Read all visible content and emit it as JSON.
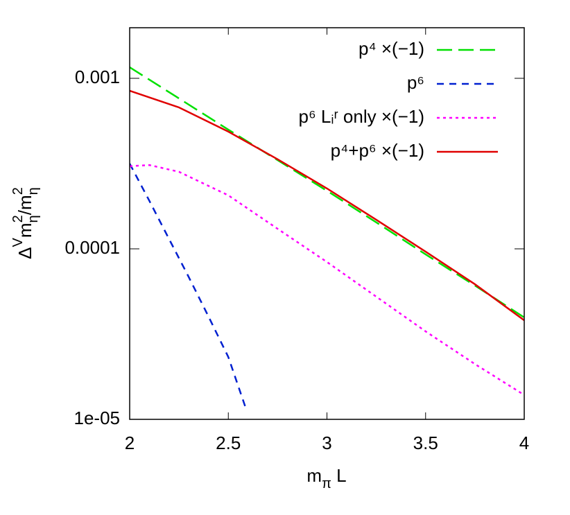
{
  "chart_data": {
    "type": "line",
    "xlabel": [
      {
        "text": "m"
      },
      {
        "text": "π",
        "shift": "sub"
      },
      {
        "text": " L"
      }
    ],
    "ylabel": [
      {
        "text": "Δ"
      },
      {
        "text": "V",
        "shift": "sup"
      },
      {
        "text": "m"
      },
      {
        "text": "η",
        "shift": "sub"
      },
      {
        "text": "2",
        "shift": "sup"
      },
      {
        "text": "/m"
      },
      {
        "text": "η",
        "shift": "sub"
      },
      {
        "text": "2",
        "shift": "sup"
      }
    ],
    "xlim": [
      2,
      4
    ],
    "xticks": [
      2,
      2.5,
      3,
      3.5,
      4
    ],
    "ylim": [
      1e-05,
      0.00198
    ],
    "ylog": true,
    "yticks": [
      {
        "value": 1e-05,
        "label": "1e-05"
      },
      {
        "value": 0.0001,
        "label": "0.0001"
      },
      {
        "value": 0.001,
        "label": "0.001"
      }
    ],
    "legend": "top-right",
    "series": [
      {
        "name": "p⁴ ×(−1)",
        "color": "#00e000",
        "dash": "22 9",
        "x": [
          2,
          2.25,
          2.5,
          2.75,
          3,
          3.25,
          3.5,
          3.75,
          4
        ],
        "values": [
          0.001161,
          0.000762,
          0.0005,
          0.000331,
          0.000219,
          0.000143,
          9.28e-05,
          6.09e-05,
          3.96e-05
        ]
      },
      {
        "name": "p⁶",
        "color": "#0020d0",
        "dash": "10 8",
        "x": [
          2,
          2.1,
          2.2,
          2.3,
          2.4,
          2.5,
          2.59
        ],
        "values": [
          0.000316,
          0.000191,
          0.000114,
          6.81e-05,
          4e-05,
          2.32e-05,
          1.15e-05
        ]
      },
      {
        "name": "p⁶ Lᵢʳ only ×(−1)",
        "color": "#ff00ff",
        "dash": "4 5",
        "x": [
          2,
          2.1,
          2.25,
          2.5,
          2.75,
          3,
          3.25,
          3.5,
          3.75,
          4
        ],
        "values": [
          0.000305,
          0.00031,
          0.000283,
          0.000206,
          0.000131,
          8.37e-05,
          5.24e-05,
          3.28e-05,
          2.11e-05,
          1.39e-05
        ]
      },
      {
        "name": "p⁴+p⁶ ×(−1)",
        "color": "#e00000",
        "dash": "none",
        "x": [
          2,
          2.25,
          2.5,
          2.75,
          3,
          3.25,
          3.5,
          3.75,
          4
        ],
        "values": [
          0.000845,
          0.000675,
          0.000487,
          0.000335,
          0.000226,
          0.000148,
          9.63e-05,
          6.2e-05,
          3.81e-05
        ]
      }
    ]
  }
}
